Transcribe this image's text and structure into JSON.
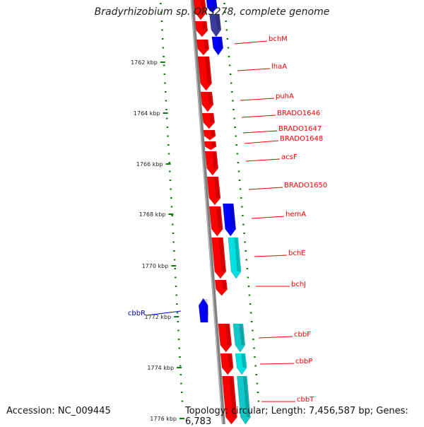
{
  "title": "Bradyrhizobium sp. ORS278, complete genome",
  "footer": {
    "accession": "Accession: NC_009445",
    "topology": "Topology: circular; Length: 7,456,587 bp; Genes: 6,783"
  },
  "colors": {
    "forward": "#ff0000",
    "reverse": "#0000ff",
    "cyan": "#00e0e0",
    "tick": "#0a7a0a",
    "backbone": "#808080"
  },
  "ruler": [
    "1762 kbp",
    "1764 kbp",
    "1766 kbp",
    "1768 kbp",
    "1770 kbp",
    "1772 kbp",
    "1774 kbp",
    "1776 kbp"
  ],
  "gene_labels": [
    {
      "name": "bchM",
      "color": "#ff0000"
    },
    {
      "name": "lhaA",
      "color": "#ff0000"
    },
    {
      "name": "puhA",
      "color": "#ff0000"
    },
    {
      "name": "BRADO1646",
      "color": "#ff0000"
    },
    {
      "name": "BRADO1647",
      "color": "#ff0000"
    },
    {
      "name": "BRADO1648",
      "color": "#ff0000"
    },
    {
      "name": "acsF",
      "color": "#ff0000"
    },
    {
      "name": "BRADO1650",
      "color": "#ff0000"
    },
    {
      "name": "hemA",
      "color": "#ff0000"
    },
    {
      "name": "bchE",
      "color": "#ff0000"
    },
    {
      "name": "bchJ",
      "color": "#ff0000"
    },
    {
      "name": "cbbR",
      "color": "#0000cc"
    },
    {
      "name": "cbbF",
      "color": "#ff0000"
    },
    {
      "name": "cbbP",
      "color": "#ff0000"
    },
    {
      "name": "cbbT",
      "color": "#ff0000"
    }
  ]
}
